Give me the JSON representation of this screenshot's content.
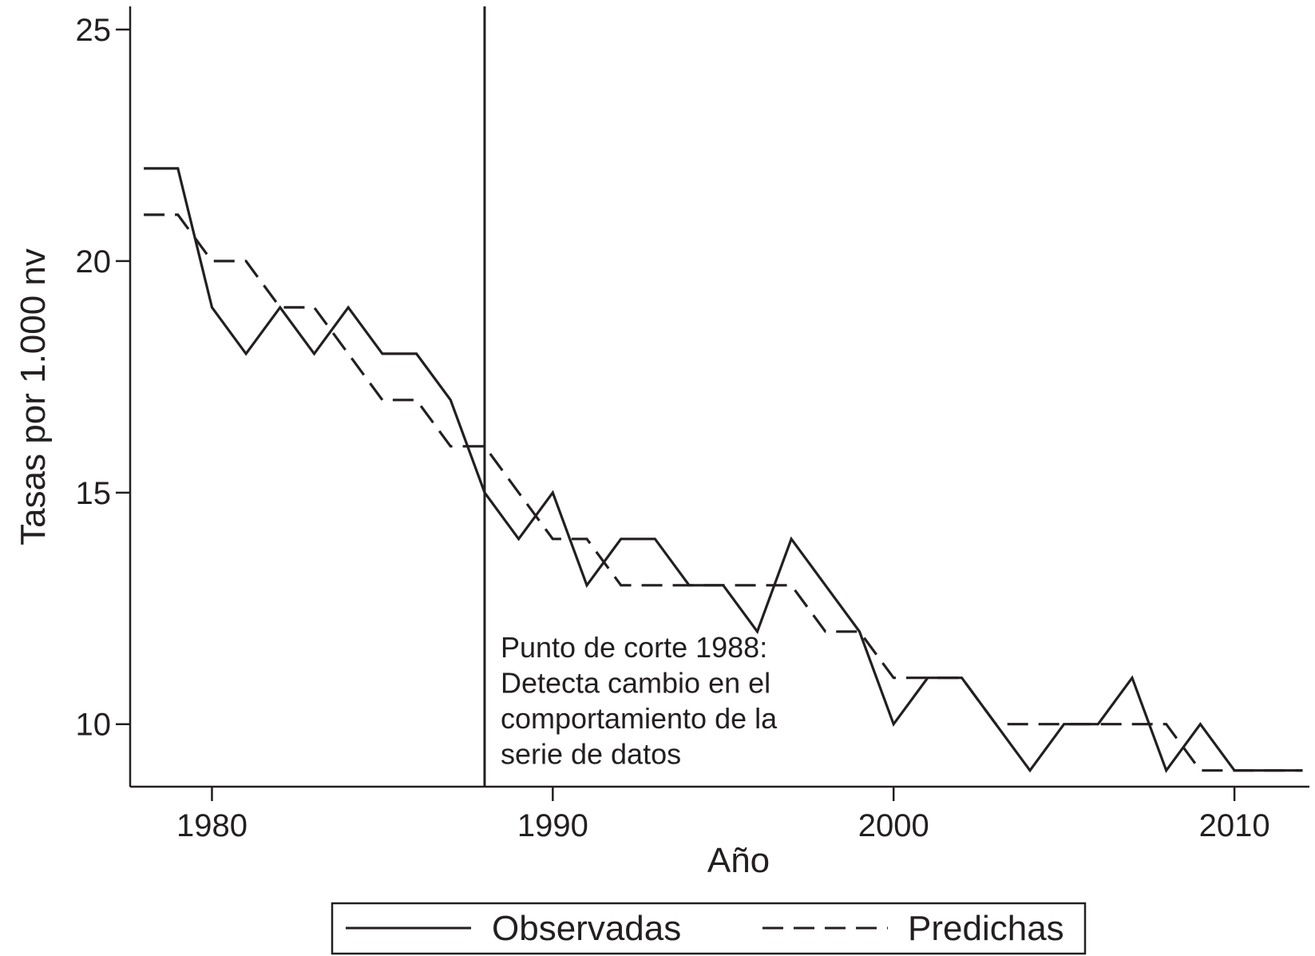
{
  "chart_data": {
    "type": "line",
    "title": "",
    "xlabel": "Año",
    "ylabel": "Tasas por 1.000 nv",
    "xlim": [
      1977.6,
      2012.2
    ],
    "ylim": [
      8.65,
      25.5
    ],
    "x_ticks": [
      1980,
      1990,
      2000,
      2010
    ],
    "y_ticks": [
      10,
      15,
      20,
      25
    ],
    "grid": false,
    "legend_position": "bottom",
    "x": [
      1978,
      1979,
      1980,
      1981,
      1982,
      1983,
      1984,
      1985,
      1986,
      1987,
      1988,
      1989,
      1990,
      1991,
      1992,
      1993,
      1994,
      1995,
      1996,
      1997,
      1998,
      1999,
      2000,
      2001,
      2002,
      2003,
      2004,
      2005,
      2006,
      2007,
      2008,
      2009,
      2010,
      2011,
      2012
    ],
    "series": [
      {
        "name": "Observadas",
        "style": "solid",
        "color": "#231f20",
        "values": [
          22,
          22,
          19,
          18,
          19,
          18,
          19,
          18,
          18,
          17,
          15,
          14,
          15,
          13,
          14,
          14,
          13,
          13,
          12,
          14,
          13,
          12,
          10,
          11,
          11,
          10,
          9,
          10,
          10,
          11,
          9,
          10,
          9,
          9,
          9
        ]
      },
      {
        "name": "Predichas",
        "style": "dashed",
        "color": "#231f20",
        "values": [
          21,
          21,
          20,
          20,
          19,
          19,
          18,
          17,
          17,
          16,
          16,
          15,
          14,
          14,
          13,
          13,
          13,
          13,
          13,
          13,
          12,
          12,
          11,
          11,
          11,
          10,
          10,
          10,
          10,
          10,
          10,
          9,
          9,
          9,
          9
        ]
      }
    ],
    "vertical_line": {
      "x": 1988
    },
    "annotation": {
      "lines": [
        "Punto de corte 1988:",
        "Detecta cambio en el",
        "comportamiento de la",
        "serie de datos"
      ]
    }
  }
}
